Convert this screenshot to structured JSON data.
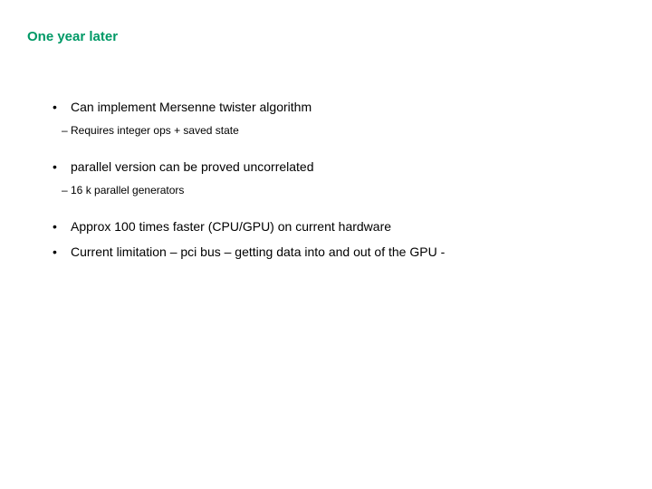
{
  "title": {
    "text": "One year later",
    "color": "#009966"
  },
  "bullets": [
    {
      "text": "Can implement Mersenne twister algorithm",
      "sub": "– Requires integer ops + saved state"
    },
    {
      "text": "parallel version can be proved uncorrelated",
      "sub": "– 16 k parallel generators"
    },
    {
      "text": "Approx 100 times faster (CPU/GPU)  on current hardware",
      "sub": null
    },
    {
      "text": "Current limitation – pci bus – getting data into and out of the GPU -",
      "sub": null
    }
  ],
  "style": {
    "body_color": "#000000",
    "background": "#ffffff",
    "title_fontsize": 15,
    "bullet_fontsize": 14,
    "sub_fontsize": 12
  }
}
